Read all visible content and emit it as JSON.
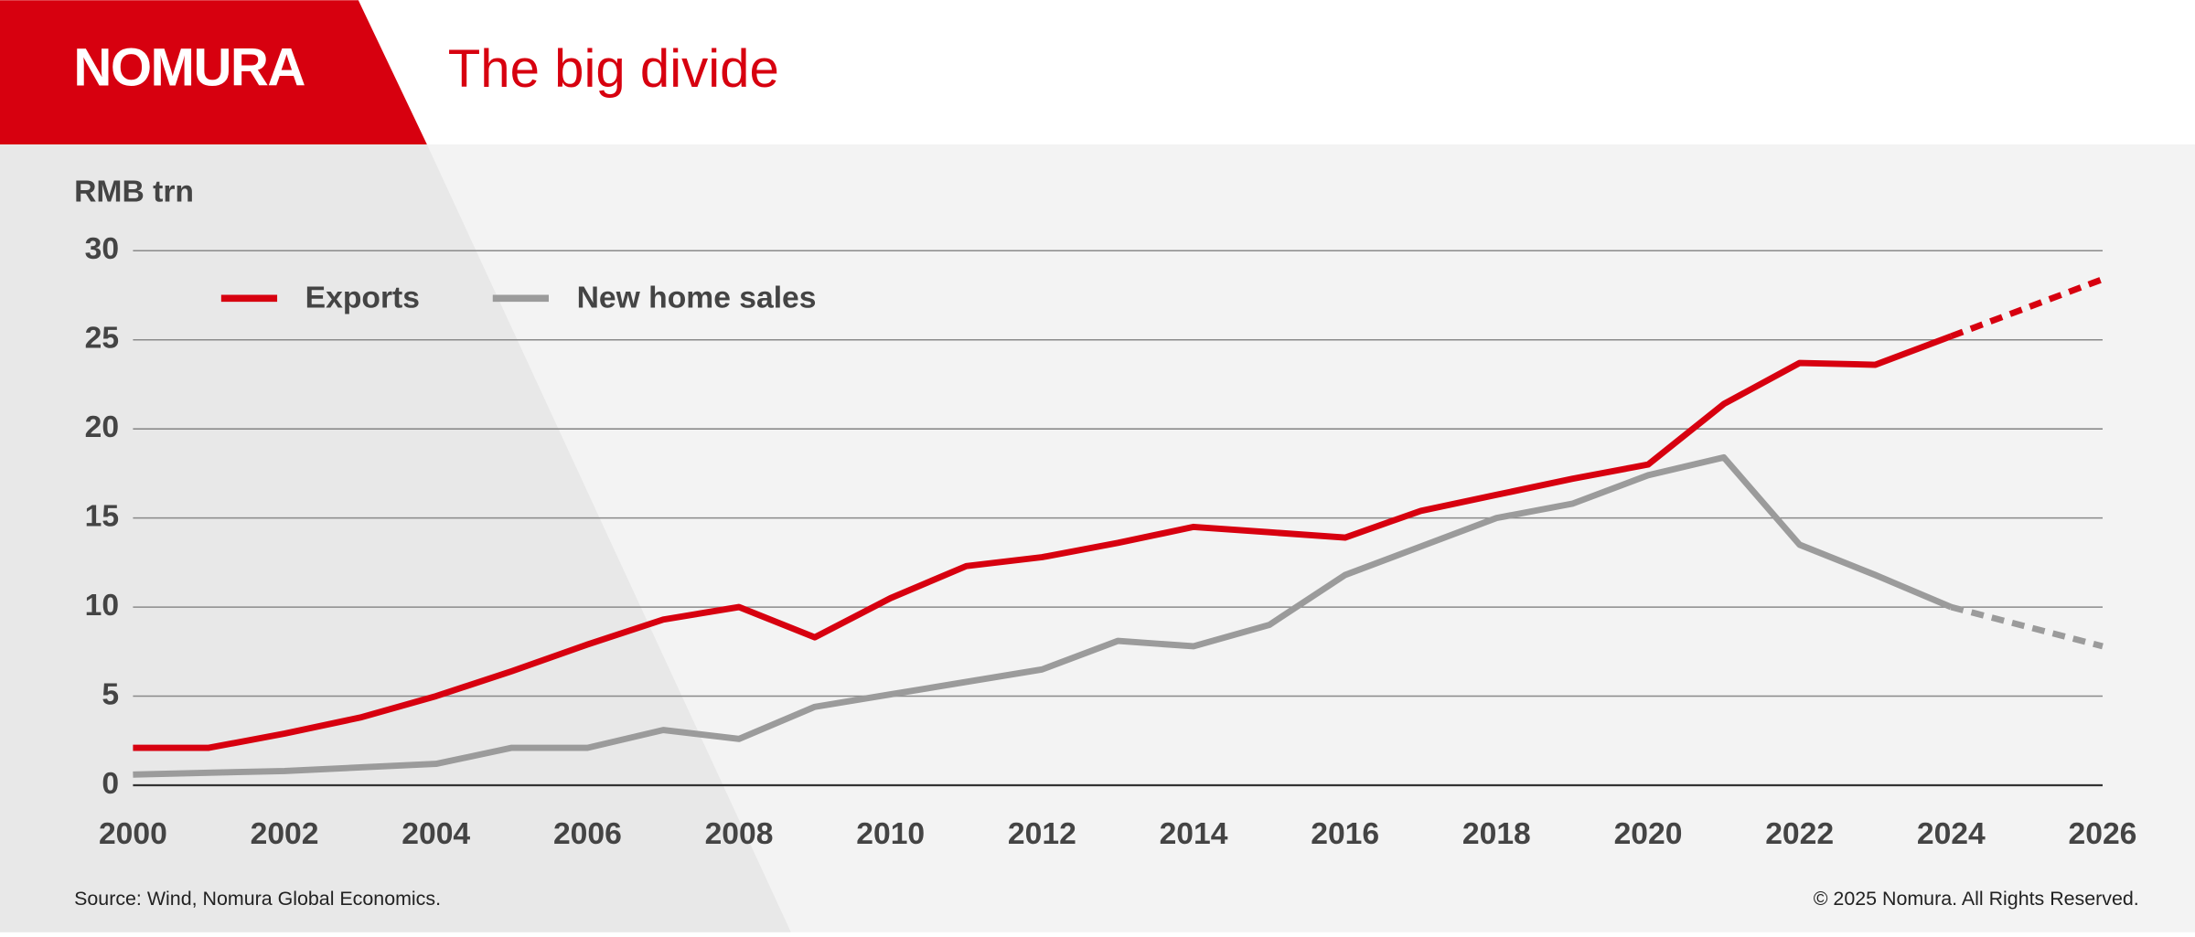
{
  "header": {
    "logo": "NOMURA"
  },
  "chart_data": {
    "type": "line",
    "title": "The big divide",
    "y_label": "RMB trn",
    "x": [
      2000,
      2001,
      2002,
      2003,
      2004,
      2005,
      2006,
      2007,
      2008,
      2009,
      2010,
      2011,
      2012,
      2013,
      2014,
      2015,
      2016,
      2017,
      2018,
      2019,
      2020,
      2021,
      2022,
      2023,
      2024,
      2025,
      2026
    ],
    "series": [
      {
        "name": "Exports",
        "color": "#d7000f",
        "values": [
          2.1,
          2.1,
          2.9,
          3.8,
          5.0,
          6.4,
          7.9,
          9.3,
          10.0,
          8.3,
          10.5,
          12.3,
          12.8,
          13.6,
          14.5,
          14.2,
          13.9,
          15.4,
          16.3,
          17.2,
          18.0,
          21.4,
          23.7,
          23.6,
          25.2,
          26.8,
          28.4
        ]
      },
      {
        "name": "New home sales",
        "color": "#9b9b9b",
        "values": [
          0.6,
          0.7,
          0.8,
          1.0,
          1.2,
          2.1,
          2.1,
          3.1,
          2.6,
          4.4,
          5.1,
          5.8,
          6.5,
          8.1,
          7.8,
          9.0,
          11.8,
          13.4,
          15.0,
          15.8,
          17.4,
          18.4,
          13.5,
          11.8,
          10.0,
          8.9,
          7.8
        ]
      }
    ],
    "forecast_from": 2024,
    "xlim": [
      2000,
      2026
    ],
    "xticks": [
      2000,
      2002,
      2004,
      2006,
      2008,
      2010,
      2012,
      2014,
      2016,
      2018,
      2020,
      2022,
      2024,
      2026
    ],
    "ylim": [
      0,
      30
    ],
    "yticks": [
      0,
      5,
      10,
      15,
      20,
      25,
      30
    ],
    "grid": true,
    "source": "Source: Wind, Nomura Global Economics.",
    "copyright": "© 2025 Nomura. All Rights Reserved."
  }
}
